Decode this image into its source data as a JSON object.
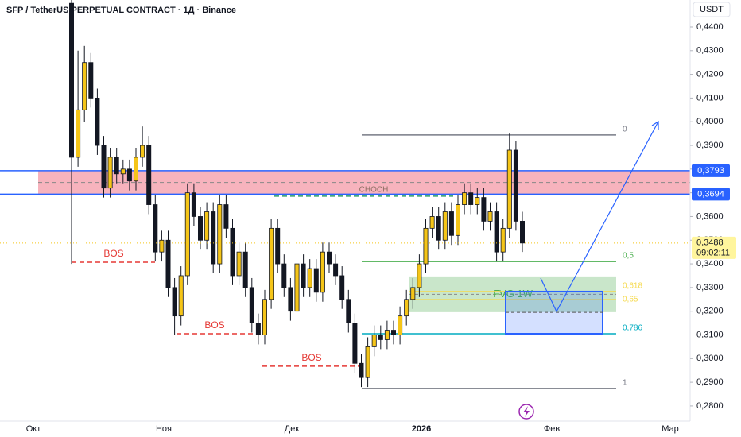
{
  "chart_data": {
    "type": "candlestick",
    "title": "SFP / TetherUS PERPETUAL CONTRACT · 1Д · Binance",
    "currency": "USDT",
    "up_color": "#f5c518",
    "down_color": "#131722",
    "ylim": [
      0.2736,
      0.4514
    ],
    "yticks": [
      {
        "value": 0.28,
        "label": "0,2800"
      },
      {
        "value": 0.29,
        "label": "0,2900"
      },
      {
        "value": 0.3,
        "label": "0,3000"
      },
      {
        "value": 0.31,
        "label": "0,3100"
      },
      {
        "value": 0.32,
        "label": "0,3200"
      },
      {
        "value": 0.33,
        "label": "0,3300"
      },
      {
        "value": 0.34,
        "label": "0,3400"
      },
      {
        "value": 0.35,
        "label": "0,3500"
      },
      {
        "value": 0.36,
        "label": "0,3600"
      },
      {
        "value": 0.37,
        "label": "0,3700"
      },
      {
        "value": 0.38,
        "label": "0,3800"
      },
      {
        "value": 0.39,
        "label": "0,3900"
      },
      {
        "value": 0.4,
        "label": "0,4000"
      },
      {
        "value": 0.41,
        "label": "0,4100"
      },
      {
        "value": 0.42,
        "label": "0,4200"
      },
      {
        "value": 0.43,
        "label": "0,4300"
      },
      {
        "value": 0.44,
        "label": "0,4400"
      }
    ],
    "x_labels": [
      "Окт",
      "Ноя",
      "Дек",
      "2026",
      "Фев",
      "Мар"
    ],
    "candles": [
      [
        0.45,
        0.452,
        0.34,
        0.385
      ],
      [
        0.385,
        0.43,
        0.381,
        0.405
      ],
      [
        0.405,
        0.432,
        0.4,
        0.425
      ],
      [
        0.425,
        0.429,
        0.406,
        0.41
      ],
      [
        0.41,
        0.414,
        0.386,
        0.39
      ],
      [
        0.39,
        0.394,
        0.368,
        0.372
      ],
      [
        0.372,
        0.389,
        0.368,
        0.385
      ],
      [
        0.385,
        0.389,
        0.374,
        0.378
      ],
      [
        0.378,
        0.384,
        0.374,
        0.38
      ],
      [
        0.38,
        0.384,
        0.371,
        0.375
      ],
      [
        0.375,
        0.389,
        0.371,
        0.385
      ],
      [
        0.385,
        0.398,
        0.381,
        0.39
      ],
      [
        0.39,
        0.394,
        0.361,
        0.365
      ],
      [
        0.365,
        0.369,
        0.341,
        0.345
      ],
      [
        0.345,
        0.354,
        0.341,
        0.35
      ],
      [
        0.35,
        0.354,
        0.326,
        0.33
      ],
      [
        0.33,
        0.334,
        0.31,
        0.318
      ],
      [
        0.318,
        0.339,
        0.314,
        0.335
      ],
      [
        0.335,
        0.374,
        0.331,
        0.37
      ],
      [
        0.37,
        0.374,
        0.356,
        0.36
      ],
      [
        0.36,
        0.364,
        0.346,
        0.35
      ],
      [
        0.35,
        0.366,
        0.346,
        0.362
      ],
      [
        0.362,
        0.366,
        0.336,
        0.34
      ],
      [
        0.34,
        0.369,
        0.336,
        0.365
      ],
      [
        0.365,
        0.369,
        0.351,
        0.355
      ],
      [
        0.355,
        0.359,
        0.331,
        0.335
      ],
      [
        0.335,
        0.349,
        0.331,
        0.345
      ],
      [
        0.345,
        0.349,
        0.326,
        0.33
      ],
      [
        0.33,
        0.334,
        0.311,
        0.315
      ],
      [
        0.315,
        0.319,
        0.306,
        0.31
      ],
      [
        0.31,
        0.329,
        0.306,
        0.325
      ],
      [
        0.325,
        0.359,
        0.321,
        0.355
      ],
      [
        0.355,
        0.359,
        0.336,
        0.34
      ],
      [
        0.34,
        0.344,
        0.326,
        0.33
      ],
      [
        0.33,
        0.334,
        0.316,
        0.32
      ],
      [
        0.32,
        0.344,
        0.316,
        0.34
      ],
      [
        0.34,
        0.344,
        0.326,
        0.33
      ],
      [
        0.33,
        0.342,
        0.326,
        0.338
      ],
      [
        0.338,
        0.342,
        0.324,
        0.328
      ],
      [
        0.328,
        0.349,
        0.324,
        0.345
      ],
      [
        0.345,
        0.349,
        0.336,
        0.34
      ],
      [
        0.34,
        0.344,
        0.331,
        0.335
      ],
      [
        0.335,
        0.339,
        0.321,
        0.325
      ],
      [
        0.325,
        0.329,
        0.311,
        0.315
      ],
      [
        0.315,
        0.319,
        0.294,
        0.298
      ],
      [
        0.298,
        0.302,
        0.288,
        0.292
      ],
      [
        0.292,
        0.309,
        0.288,
        0.305
      ],
      [
        0.305,
        0.314,
        0.301,
        0.31
      ],
      [
        0.31,
        0.314,
        0.304,
        0.308
      ],
      [
        0.308,
        0.316,
        0.304,
        0.312
      ],
      [
        0.312,
        0.316,
        0.306,
        0.31
      ],
      [
        0.31,
        0.322,
        0.306,
        0.318
      ],
      [
        0.318,
        0.329,
        0.314,
        0.325
      ],
      [
        0.325,
        0.334,
        0.321,
        0.33
      ],
      [
        0.33,
        0.344,
        0.326,
        0.34
      ],
      [
        0.34,
        0.359,
        0.336,
        0.355
      ],
      [
        0.355,
        0.364,
        0.351,
        0.36
      ],
      [
        0.36,
        0.364,
        0.346,
        0.35
      ],
      [
        0.35,
        0.366,
        0.346,
        0.362
      ],
      [
        0.362,
        0.366,
        0.348,
        0.352
      ],
      [
        0.352,
        0.369,
        0.348,
        0.365
      ],
      [
        0.365,
        0.374,
        0.361,
        0.37
      ],
      [
        0.37,
        0.374,
        0.361,
        0.365
      ],
      [
        0.365,
        0.372,
        0.361,
        0.368
      ],
      [
        0.368,
        0.372,
        0.354,
        0.358
      ],
      [
        0.358,
        0.366,
        0.354,
        0.362
      ],
      [
        0.362,
        0.366,
        0.341,
        0.345
      ],
      [
        0.345,
        0.359,
        0.341,
        0.355
      ],
      [
        0.355,
        0.395,
        0.351,
        0.388
      ],
      [
        0.388,
        0.392,
        0.354,
        0.358
      ],
      [
        0.358,
        0.362,
        0.345,
        0.3488
      ]
    ],
    "zone": {
      "low": 0.3694,
      "high": 0.3793,
      "color": "#f28b9a"
    },
    "price_lines": [
      {
        "value": 0.3793,
        "label": "0,3793",
        "color": "#2962ff"
      },
      {
        "value": 0.3694,
        "label": "0,3694",
        "color": "#2962ff"
      }
    ],
    "last_price": {
      "value": 0.3488,
      "label": "0,3488",
      "countdown": "09:02:11"
    },
    "bos": [
      {
        "label": "BOS",
        "price": 0.3407
      },
      {
        "label": "BOS",
        "price": 0.3105
      },
      {
        "label": "BOS",
        "price": 0.2968
      }
    ],
    "choch": {
      "label": "CHOCH",
      "price": 0.3686
    },
    "fib": [
      {
        "label": "0",
        "price": 0.3944,
        "color": "#787b86"
      },
      {
        "label": "0,5",
        "price": 0.341,
        "color": "#4caf50"
      },
      {
        "label": "0,618",
        "price": 0.3283,
        "color": "#f5d94a"
      },
      {
        "label": "0,65",
        "price": 0.3249,
        "color": "#f5d94a"
      },
      {
        "label": "0,786",
        "price": 0.3105,
        "color": "#00acc1"
      },
      {
        "label": "1",
        "price": 0.2874,
        "color": "#787b86"
      }
    ],
    "fvg": {
      "label": "FVG 1W",
      "low": 0.3196,
      "high": 0.3347
    },
    "box": {
      "low": 0.3105,
      "high": 0.3283
    }
  }
}
